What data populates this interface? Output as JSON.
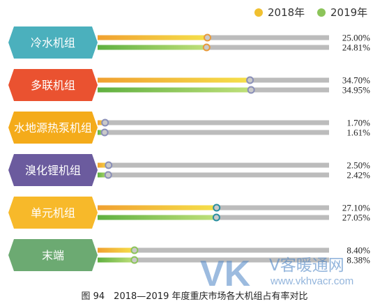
{
  "chart_data": {
    "type": "bar",
    "orientation": "horizontal",
    "categories": [
      "冷水机组",
      "多联机组",
      "水地源热泵机组",
      "溴化锂机组",
      "单元机组",
      "末端"
    ],
    "series": [
      {
        "name": "2018年",
        "values": [
          25.0,
          34.7,
          1.7,
          2.5,
          27.1,
          8.4
        ],
        "labels": [
          "25.00%",
          "34.70%",
          "1.70%",
          "2.50%",
          "27.10%",
          "8.40%"
        ]
      },
      {
        "name": "2019年",
        "values": [
          24.81,
          34.95,
          1.61,
          2.42,
          27.05,
          8.38
        ],
        "labels": [
          "24.81%",
          "34.95%",
          "1.61%",
          "2.42%",
          "27.05%",
          "8.38%"
        ]
      }
    ],
    "xlim": [
      0,
      100
    ],
    "legend": "top-right",
    "grid": false,
    "caption": "图 94　2018—2019 年度重庆市场各大机组占有率对比"
  },
  "colors": {
    "categories": [
      "#4bb0bd",
      "#ea5230",
      "#f4ab1a",
      "#6b5b9e",
      "#f7b92a",
      "#6caa72"
    ],
    "legend_2018": "#f0c030",
    "legend_2019": "#8cc45a",
    "track": "#bcbcbc",
    "bar_2018_start": "#f0a030",
    "bar_2018_end": "#f5e04a",
    "bar_2019_start": "#5fb040",
    "bar_2019_end": "#c0e07a",
    "marker_rings": [
      "#e89a3a",
      "#8a8fb8",
      "#8a8fb8",
      "#8a8fb8",
      "#2a8fa0",
      "#8cc45a"
    ]
  },
  "watermark": {
    "big": "VK",
    "cn": "V客暖通网",
    "url": "www.vkhvacr.com"
  }
}
